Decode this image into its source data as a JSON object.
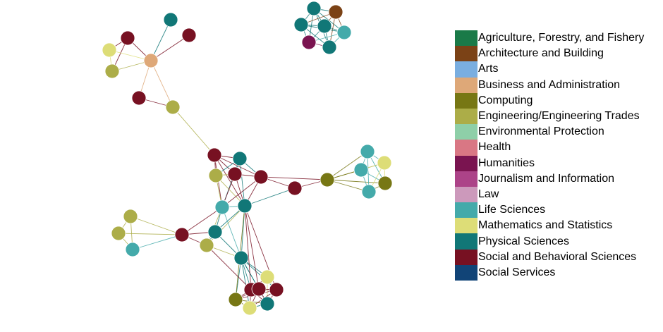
{
  "legend": {
    "categories": [
      {
        "label": "Agriculture, Forestry, and Fishery",
        "color": "#1a7a48"
      },
      {
        "label": "Architecture and Building",
        "color": "#7b4216"
      },
      {
        "label": "Arts",
        "color": "#7aaee0"
      },
      {
        "label": "Business and Administration",
        "color": "#dea878"
      },
      {
        "label": "Computing",
        "color": "#777714"
      },
      {
        "label": "Engineering/Engineering Trades",
        "color": "#acad48"
      },
      {
        "label": "Environmental Protection",
        "color": "#8ecfa8"
      },
      {
        "label": "Health",
        "color": "#d97784"
      },
      {
        "label": "Humanities",
        "color": "#7a1450"
      },
      {
        "label": "Journalism and Information",
        "color": "#ac4388"
      },
      {
        "label": "Law",
        "color": "#cc99bb"
      },
      {
        "label": "Life Sciences",
        "color": "#44aaaa"
      },
      {
        "label": "Mathematics and Statistics",
        "color": "#dddd77"
      },
      {
        "label": "Physical Sciences",
        "color": "#117777"
      },
      {
        "label": "Social and Behavioral Sciences",
        "color": "#771122"
      },
      {
        "label": "Social Services",
        "color": "#114477"
      }
    ]
  },
  "network": {
    "node_categories": {
      "n1": "Physical Sciences",
      "n2": "Social and Behavioral Sciences",
      "n3": "Social and Behavioral Sciences",
      "n4": "Mathematics and Statistics",
      "n5": "Business and Administration",
      "n6": "Engineering/Engineering Trades",
      "n7": "Social and Behavioral Sciences",
      "n8": "Engineering/Engineering Trades",
      "t1": "Physical Sciences",
      "t2": "Architecture and Building",
      "t3": "Physical Sciences",
      "t4": "Physical Sciences",
      "t5": "Life Sciences",
      "t6": "Humanities",
      "t7": "Physical Sciences",
      "c1": "Social and Behavioral Sciences",
      "c2": "Physical Sciences",
      "c3": "Engineering/Engineering Trades",
      "c4": "Social and Behavioral Sciences",
      "c5": "Social and Behavioral Sciences",
      "c6": "Life Sciences",
      "c7": "Physical Sciences",
      "c8": "Social and Behavioral Sciences",
      "r1": "Computing",
      "r2": "Life Sciences",
      "r3": "Mathematics and Statistics",
      "r4": "Life Sciences",
      "r5": "Computing",
      "r6": "Life Sciences",
      "l1": "Engineering/Engineering Trades",
      "l2": "Engineering/Engineering Trades",
      "l3": "Life Sciences",
      "l4": "Social and Behavioral Sciences",
      "l5": "Physical Sciences",
      "l6": "Engineering/Engineering Trades",
      "b1": "Physical Sciences",
      "b2": "Social and Behavioral Sciences",
      "b3": "Mathematics and Statistics",
      "b4": "Social and Behavioral Sciences",
      "b5": "Social and Behavioral Sciences",
      "b6": "Computing",
      "b7": "Physical Sciences",
      "b8": "Mathematics and Statistics"
    },
    "edges": [
      [
        "n2",
        "n4"
      ],
      [
        "n2",
        "n5"
      ],
      [
        "n2",
        "n6"
      ],
      [
        "n4",
        "n5"
      ],
      [
        "n4",
        "n6"
      ],
      [
        "n6",
        "n5"
      ],
      [
        "n1",
        "n5"
      ],
      [
        "n3",
        "n5"
      ],
      [
        "n5",
        "n7"
      ],
      [
        "n5",
        "n8"
      ],
      [
        "n7",
        "n8"
      ],
      [
        "n8",
        "c1"
      ],
      [
        "t1",
        "t2"
      ],
      [
        "t1",
        "t3"
      ],
      [
        "t1",
        "t4"
      ],
      [
        "t1",
        "t5"
      ],
      [
        "t1",
        "t6"
      ],
      [
        "t1",
        "t7"
      ],
      [
        "t2",
        "t3"
      ],
      [
        "t2",
        "t4"
      ],
      [
        "t2",
        "t5"
      ],
      [
        "t2",
        "t7"
      ],
      [
        "t3",
        "t4"
      ],
      [
        "t3",
        "t5"
      ],
      [
        "t3",
        "t6"
      ],
      [
        "t3",
        "t7"
      ],
      [
        "t4",
        "t5"
      ],
      [
        "t4",
        "t6"
      ],
      [
        "t4",
        "t7"
      ],
      [
        "t5",
        "t6"
      ],
      [
        "t5",
        "t7"
      ],
      [
        "t6",
        "t7"
      ],
      [
        "c1",
        "c2"
      ],
      [
        "c1",
        "c3"
      ],
      [
        "c1",
        "c4"
      ],
      [
        "c1",
        "c5"
      ],
      [
        "c1",
        "c6"
      ],
      [
        "c1",
        "c7"
      ],
      [
        "c2",
        "c3"
      ],
      [
        "c2",
        "c4"
      ],
      [
        "c2",
        "c5"
      ],
      [
        "c2",
        "c6"
      ],
      [
        "c2",
        "c7"
      ],
      [
        "c3",
        "c4"
      ],
      [
        "c3",
        "c6"
      ],
      [
        "c3",
        "c7"
      ],
      [
        "c4",
        "c5"
      ],
      [
        "c4",
        "c6"
      ],
      [
        "c4",
        "c7"
      ],
      [
        "c5",
        "c6"
      ],
      [
        "c5",
        "c7"
      ],
      [
        "c6",
        "c7"
      ],
      [
        "c5",
        "c8"
      ],
      [
        "c7",
        "c8"
      ],
      [
        "c8",
        "r1"
      ],
      [
        "c5",
        "r1"
      ],
      [
        "r1",
        "r2"
      ],
      [
        "r1",
        "r3"
      ],
      [
        "r1",
        "r4"
      ],
      [
        "r1",
        "r5"
      ],
      [
        "r1",
        "r6"
      ],
      [
        "r2",
        "r3"
      ],
      [
        "r2",
        "r4"
      ],
      [
        "r2",
        "r5"
      ],
      [
        "r2",
        "r6"
      ],
      [
        "r3",
        "r4"
      ],
      [
        "r3",
        "r5"
      ],
      [
        "r3",
        "r6"
      ],
      [
        "r4",
        "r5"
      ],
      [
        "r4",
        "r6"
      ],
      [
        "r5",
        "r6"
      ],
      [
        "l1",
        "l4"
      ],
      [
        "l2",
        "l4"
      ],
      [
        "l3",
        "l4"
      ],
      [
        "l1",
        "l2"
      ],
      [
        "l2",
        "l3"
      ],
      [
        "l1",
        "l3"
      ],
      [
        "l4",
        "l5"
      ],
      [
        "l4",
        "l6"
      ],
      [
        "l4",
        "c6"
      ],
      [
        "l5",
        "l6"
      ],
      [
        "l5",
        "c6"
      ],
      [
        "l5",
        "c7"
      ],
      [
        "l6",
        "c6"
      ],
      [
        "l6",
        "c7"
      ],
      [
        "l5",
        "b1"
      ],
      [
        "l6",
        "b1"
      ],
      [
        "c7",
        "b1"
      ],
      [
        "c6",
        "b1"
      ],
      [
        "b1",
        "b2"
      ],
      [
        "b1",
        "b3"
      ],
      [
        "b1",
        "b4"
      ],
      [
        "b1",
        "b5"
      ],
      [
        "b1",
        "b6"
      ],
      [
        "b1",
        "b7"
      ],
      [
        "b1",
        "b8"
      ],
      [
        "b2",
        "b3"
      ],
      [
        "b2",
        "b4"
      ],
      [
        "b2",
        "b5"
      ],
      [
        "b2",
        "b6"
      ],
      [
        "b2",
        "b7"
      ],
      [
        "b2",
        "b8"
      ],
      [
        "b3",
        "b4"
      ],
      [
        "b3",
        "b5"
      ],
      [
        "b3",
        "b7"
      ],
      [
        "b4",
        "b5"
      ],
      [
        "b4",
        "b6"
      ],
      [
        "b4",
        "b7"
      ],
      [
        "b4",
        "b8"
      ],
      [
        "b5",
        "b6"
      ],
      [
        "b5",
        "b7"
      ],
      [
        "b5",
        "b8"
      ],
      [
        "b6",
        "b8"
      ],
      [
        "b7",
        "b8"
      ],
      [
        "b6",
        "b7"
      ],
      [
        "b2",
        "c7"
      ],
      [
        "b4",
        "c7"
      ],
      [
        "b5",
        "c7"
      ],
      [
        "b6",
        "c7"
      ],
      [
        "b2",
        "l6"
      ]
    ]
  }
}
